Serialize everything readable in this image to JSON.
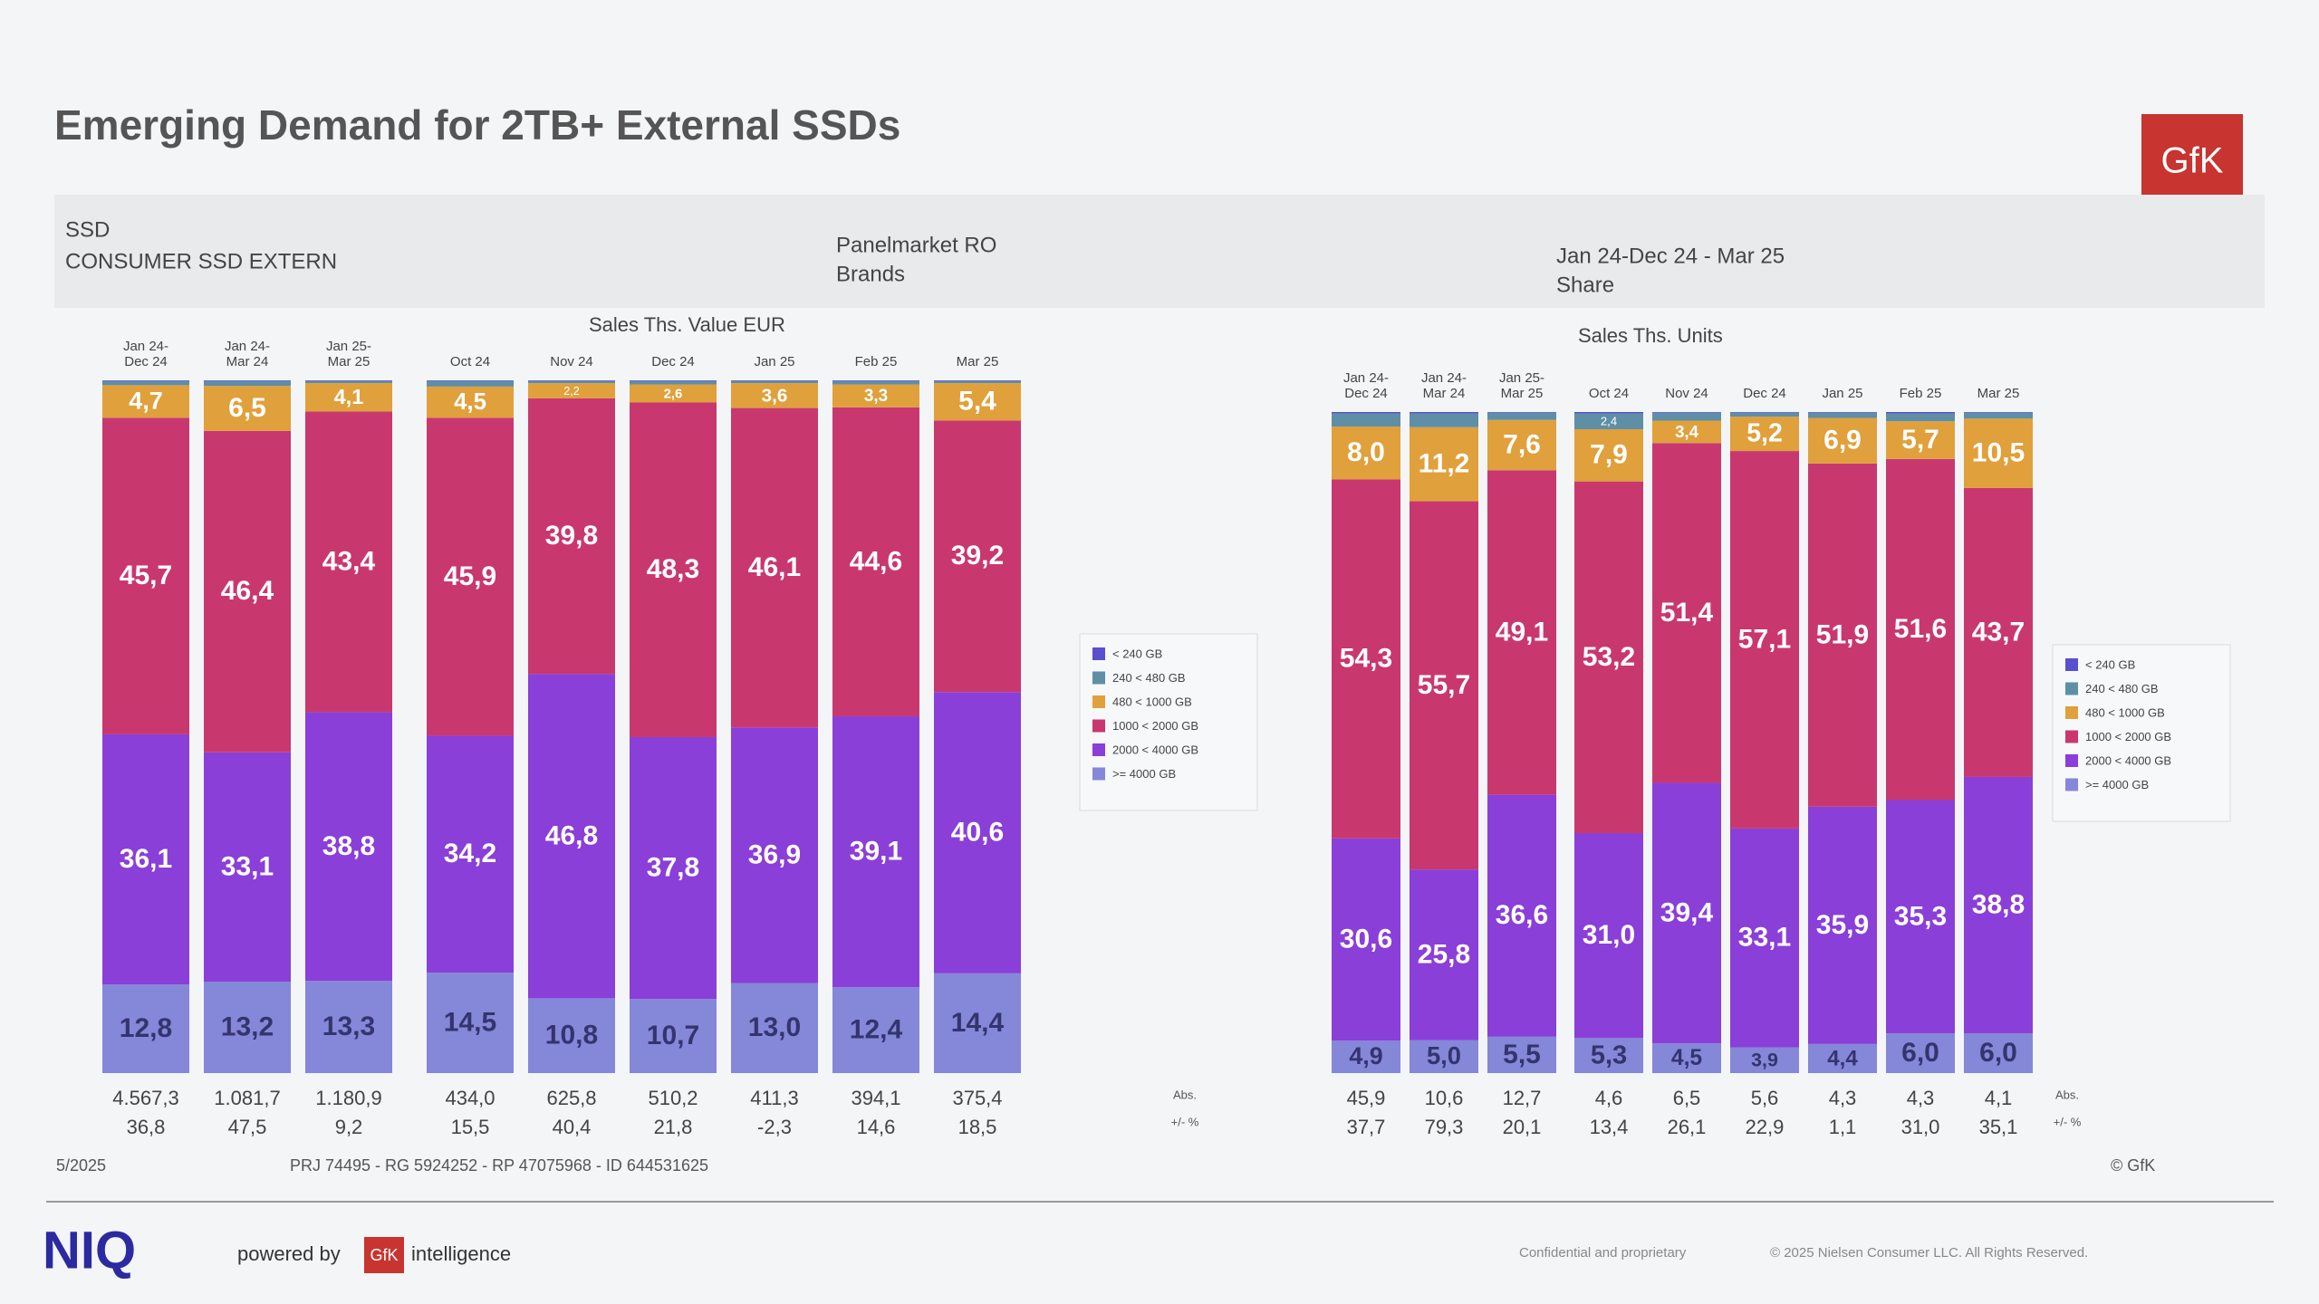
{
  "slide": {
    "title": "Emerging Demand for 2TB+ External SSDs",
    "logo": "GfK",
    "header": {
      "product": "SSD",
      "segment": "CONSUMER SSD EXTERN",
      "panel": "Panelmarket RO",
      "level": "Brands",
      "period": "Jan 24-Dec 24 - Mar 25",
      "measure": "Share"
    },
    "footer": {
      "date": "5/2025",
      "project": "PRJ 74495 - RG 5924252 - RP 47075968 - ID 644531625",
      "source": "© GfK",
      "brand": "NIQ",
      "powered": "powered by",
      "powered_logo": "GfK",
      "powered_suffix": "intelligence",
      "confidential": "Confidential and proprietary",
      "copyright": "© 2025 Nielsen Consumer LLC. All Rights Reserved."
    }
  },
  "chart_data": [
    {
      "type": "bar",
      "stacked": true,
      "subtitle": "Sales Ths. Value EUR",
      "ylim": [
        0,
        100
      ],
      "categories": [
        "Jan 24-Dec 24",
        "Jan 24-Mar 24",
        "Jan 25-Mar 25",
        "Oct 24",
        "Nov 24",
        "Dec 24",
        "Jan 25",
        "Feb 25",
        "Mar 25"
      ],
      "series": [
        {
          "name": "< 240 GB",
          "color": "#5a4fcf",
          "values": [
            0.1,
            0.1,
            0.1,
            0.1,
            0.1,
            0.1,
            0.1,
            0.1,
            0.1
          ],
          "value_labels": [
            null,
            null,
            null,
            null,
            null,
            null,
            null,
            null,
            null
          ]
        },
        {
          "name": "240 < 480 GB",
          "color": "#5e8fa6",
          "values": [
            0.6,
            0.7,
            0.3,
            0.8,
            0.3,
            0.5,
            0.3,
            0.5,
            0.3
          ],
          "value_labels": [
            null,
            null,
            null,
            null,
            null,
            null,
            null,
            null,
            null
          ]
        },
        {
          "name": "480 < 1000 GB",
          "color": "#e0a03c",
          "values": [
            4.7,
            6.5,
            4.1,
            4.5,
            2.2,
            2.6,
            3.6,
            3.3,
            5.4
          ],
          "value_labels": [
            "4,7",
            "6,5",
            "4,1",
            "4,5",
            "2,2",
            "2,6",
            "3,6",
            "3,3",
            "5,4"
          ]
        },
        {
          "name": "1000 < 2000 GB",
          "color": "#c8386f",
          "values": [
            45.7,
            46.4,
            43.4,
            45.9,
            39.8,
            48.3,
            46.1,
            44.6,
            39.2
          ],
          "value_labels": [
            "45,7",
            "46,4",
            "43,4",
            "45,9",
            "39,8",
            "48,3",
            "46,1",
            "44,6",
            "39,2"
          ]
        },
        {
          "name": "2000 < 4000 GB",
          "color": "#8a3fd8",
          "values": [
            36.1,
            33.1,
            38.8,
            34.2,
            46.8,
            37.8,
            36.9,
            39.1,
            40.6
          ],
          "value_labels": [
            "36,1",
            "33,1",
            "38,8",
            "34,2",
            "46,8",
            "37,8",
            "36,9",
            "39,1",
            "40,6"
          ]
        },
        {
          "name": ">= 4000 GB",
          "color": "#8587d8",
          "values": [
            12.8,
            13.2,
            13.3,
            14.5,
            10.8,
            10.7,
            13.0,
            12.4,
            14.4
          ],
          "value_labels": [
            "12,8",
            "13,2",
            "13,3",
            "14,5",
            "10,8",
            "10,7",
            "13,0",
            "12,4",
            "14,4"
          ]
        }
      ],
      "table_rows": [
        {
          "label": "Abs.",
          "values": [
            "4.567,3",
            "1.081,7",
            "1.180,9",
            "434,0",
            "625,8",
            "510,2",
            "411,3",
            "394,1",
            "375,4"
          ]
        },
        {
          "label": "+/- %",
          "values": [
            "36,8",
            "47,5",
            "9,2",
            "15,5",
            "40,4",
            "21,8",
            "-2,3",
            "14,6",
            "18,5"
          ]
        }
      ]
    },
    {
      "type": "bar",
      "stacked": true,
      "subtitle": "Sales Ths. Units",
      "ylim": [
        0,
        100
      ],
      "categories": [
        "Jan 24-Dec 24",
        "Jan 24-Mar 24",
        "Jan 25-Mar 25",
        "Oct 24",
        "Nov 24",
        "Dec 24",
        "Jan 25",
        "Feb 25",
        "Mar 25"
      ],
      "series": [
        {
          "name": "< 240 GB",
          "color": "#5a4fcf",
          "values": [
            0.2,
            0.2,
            0.1,
            0.2,
            0.1,
            0.1,
            0.1,
            0.2,
            0.1
          ],
          "value_labels": [
            null,
            null,
            null,
            null,
            null,
            null,
            null,
            null,
            null
          ]
        },
        {
          "name": "240 < 480 GB",
          "color": "#5e8fa6",
          "values": [
            2.0,
            2.1,
            1.1,
            2.4,
            1.2,
            0.6,
            0.8,
            1.2,
            0.9
          ],
          "value_labels": [
            null,
            null,
            null,
            "2,4",
            null,
            null,
            null,
            null,
            null
          ]
        },
        {
          "name": "480 < 1000 GB",
          "color": "#e0a03c",
          "values": [
            8.0,
            11.2,
            7.6,
            7.9,
            3.4,
            5.2,
            6.9,
            5.7,
            10.5
          ],
          "value_labels": [
            "8,0",
            "11,2",
            "7,6",
            "7,9",
            "3,4",
            "5,2",
            "6,9",
            "5,7",
            "10,5"
          ]
        },
        {
          "name": "1000 < 2000 GB",
          "color": "#c8386f",
          "values": [
            54.3,
            55.7,
            49.1,
            53.2,
            51.4,
            57.1,
            51.9,
            51.6,
            43.7
          ],
          "value_labels": [
            "54,3",
            "55,7",
            "49,1",
            "53,2",
            "51,4",
            "57,1",
            "51,9",
            "51,6",
            "43,7"
          ]
        },
        {
          "name": "2000 < 4000 GB",
          "color": "#8a3fd8",
          "values": [
            30.6,
            25.8,
            36.6,
            31.0,
            39.4,
            33.1,
            35.9,
            35.3,
            38.8
          ],
          "value_labels": [
            "30,6",
            "25,8",
            "36,6",
            "31,0",
            "39,4",
            "33,1",
            "35,9",
            "35,3",
            "38,8"
          ]
        },
        {
          "name": ">= 4000 GB",
          "color": "#8587d8",
          "values": [
            4.9,
            5.0,
            5.5,
            5.3,
            4.5,
            3.9,
            4.4,
            6.0,
            6.0
          ],
          "value_labels": [
            "4,9",
            "5,0",
            "5,5",
            "5,3",
            "4,5",
            "3,9",
            "4,4",
            "6,0",
            "6,0"
          ]
        }
      ],
      "table_rows": [
        {
          "label": "Abs.",
          "values": [
            "45,9",
            "10,6",
            "12,7",
            "4,6",
            "6,5",
            "5,6",
            "4,3",
            "4,3",
            "4,1"
          ]
        },
        {
          "label": "+/- %",
          "values": [
            "37,7",
            "79,3",
            "20,1",
            "13,4",
            "26,1",
            "22,9",
            "1,1",
            "31,0",
            "35,1"
          ]
        }
      ]
    }
  ]
}
